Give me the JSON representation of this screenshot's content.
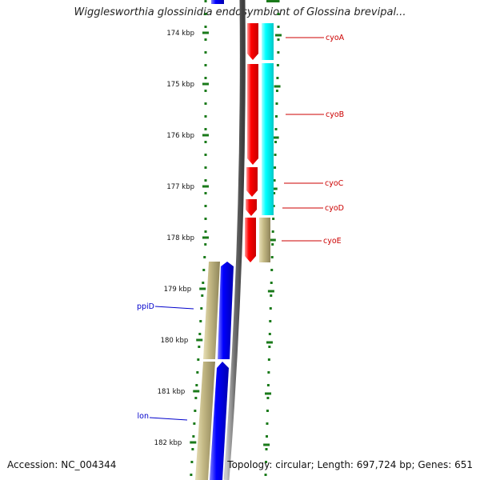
{
  "title": "Wigglesworthia glossinidia endosymbiont of Glossina brevipal...",
  "footer": {
    "accession": "Accession: NC_004344",
    "topology": "Topology: circular; Length: 697,724 bp; Genes: 651"
  },
  "scale": {
    "unit": "kbp",
    "labels": [
      "174 kbp",
      "175 kbp",
      "176 kbp",
      "177 kbp",
      "178 kbp",
      "179 kbp",
      "180 kbp",
      "181 kbp",
      "182 kbp"
    ]
  },
  "genes": [
    {
      "name": "cyoA",
      "strand": "forward",
      "color": "#cc0000"
    },
    {
      "name": "cyoB",
      "strand": "forward",
      "color": "#cc0000"
    },
    {
      "name": "cyoC",
      "strand": "forward",
      "color": "#cc0000"
    },
    {
      "name": "cyoD",
      "strand": "forward",
      "color": "#cc0000"
    },
    {
      "name": "cyoE",
      "strand": "forward",
      "color": "#cc0000"
    },
    {
      "name": "ppiD",
      "strand": "reverse",
      "color": "#0000cc"
    },
    {
      "name": "lon",
      "strand": "reverse",
      "color": "#0000cc"
    }
  ],
  "colors": {
    "forward_cds": "#ff0000",
    "reverse_cds": "#0000ff",
    "forward_feature": "#00ffff",
    "tan_feature": "#b8ae7a",
    "backbone": "#808080",
    "ticks": "#1a7a1a"
  }
}
